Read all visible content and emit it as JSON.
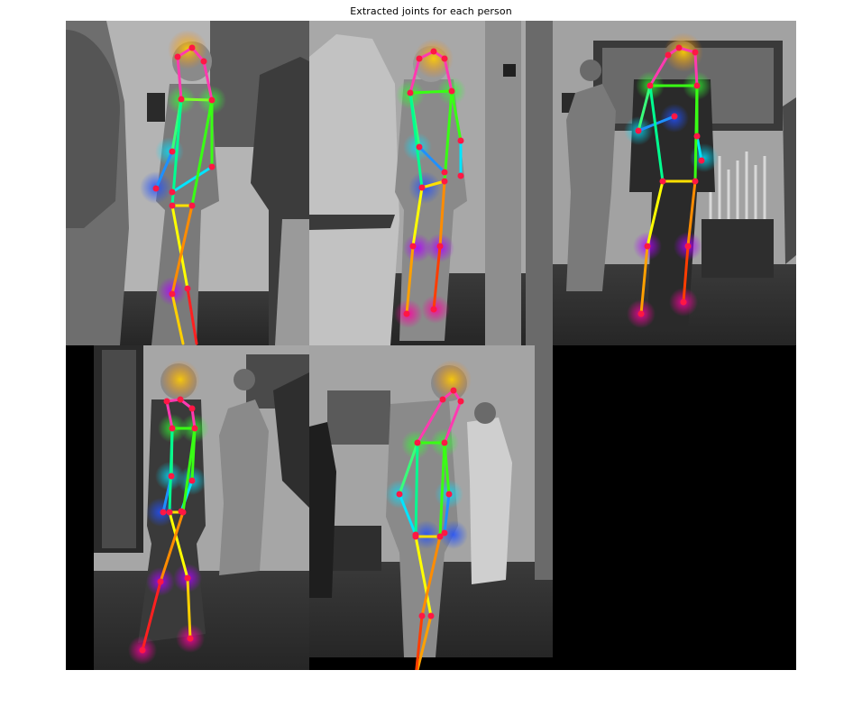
{
  "figure": {
    "title": "Extracted joints for each person"
  },
  "panels": [
    {
      "id": "p1",
      "content": "person crop 1 with pose skeleton overlay"
    },
    {
      "id": "p2",
      "content": "person crop 2 with pose skeleton overlay"
    },
    {
      "id": "p3",
      "content": "person crop 3 with pose skeleton overlay"
    },
    {
      "id": "p4",
      "content": "person crop 4 with pose skeleton overlay"
    },
    {
      "id": "p5",
      "content": "person crop 5 with pose skeleton overlay"
    },
    {
      "id": "p6",
      "content": "empty (black)"
    }
  ],
  "colors": {
    "background": "#000000",
    "joint_dot": "#ff1744",
    "limb_head": "#ff2d95",
    "limb_torso": "#39ff14",
    "limb_arm": "#00e5ff",
    "limb_leg_upper": "#ffff00",
    "limb_leg_lower": "#ff3d00"
  }
}
